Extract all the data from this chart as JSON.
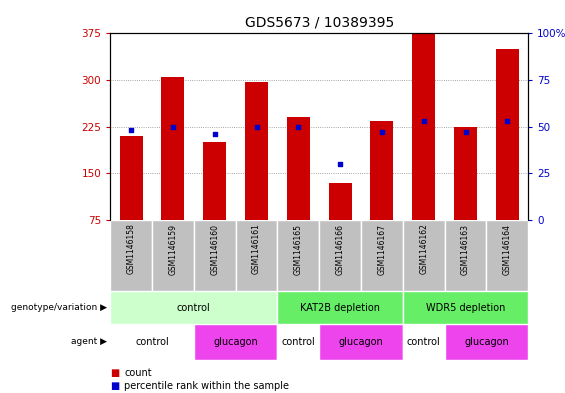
{
  "title": "GDS5673 / 10389395",
  "samples": [
    "GSM1146158",
    "GSM1146159",
    "GSM1146160",
    "GSM1146161",
    "GSM1146165",
    "GSM1146166",
    "GSM1146167",
    "GSM1146162",
    "GSM1146163",
    "GSM1146164"
  ],
  "counts": [
    210,
    305,
    200,
    297,
    240,
    135,
    235,
    375,
    225,
    350
  ],
  "percentiles": [
    48,
    50,
    46,
    50,
    50,
    30,
    47,
    53,
    47,
    53
  ],
  "left_ylim": [
    75,
    375
  ],
  "right_ylim": [
    0,
    100
  ],
  "left_yticks": [
    75,
    150,
    225,
    300,
    375
  ],
  "right_yticks": [
    0,
    25,
    50,
    75,
    100
  ],
  "right_yticklabels": [
    "0",
    "25",
    "50",
    "75",
    "100%"
  ],
  "bar_color": "#cc0000",
  "dot_color": "#0000cc",
  "grid_color": "#888888",
  "sample_bg_color": "#c0c0c0",
  "genotype_groups": [
    {
      "label": "control",
      "start": 0,
      "end": 4,
      "color": "#ccffcc"
    },
    {
      "label": "KAT2B depletion",
      "start": 4,
      "end": 7,
      "color": "#66ee66"
    },
    {
      "label": "WDR5 depletion",
      "start": 7,
      "end": 10,
      "color": "#66ee66"
    }
  ],
  "agent_groups": [
    {
      "label": "control",
      "start": 0,
      "end": 2,
      "color": "#ffffff"
    },
    {
      "label": "glucagon",
      "start": 2,
      "end": 4,
      "color": "#ee44ee"
    },
    {
      "label": "control",
      "start": 4,
      "end": 5,
      "color": "#ffffff"
    },
    {
      "label": "glucagon",
      "start": 5,
      "end": 7,
      "color": "#ee44ee"
    },
    {
      "label": "control",
      "start": 7,
      "end": 8,
      "color": "#ffffff"
    },
    {
      "label": "glucagon",
      "start": 8,
      "end": 10,
      "color": "#ee44ee"
    }
  ],
  "left_label_color": "#cc0000",
  "right_label_color": "#0000cc",
  "title_fontsize": 10,
  "tick_fontsize": 7.5,
  "cell_fontsize": 7,
  "sample_fontsize": 5.5
}
